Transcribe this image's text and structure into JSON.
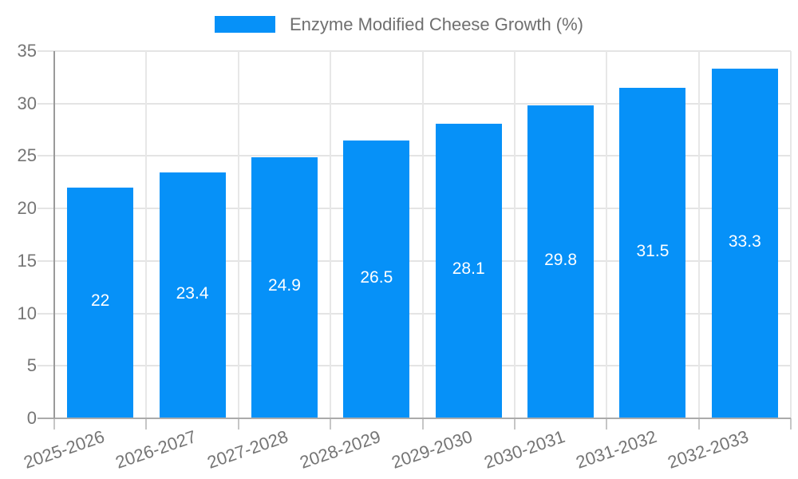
{
  "chart_data": {
    "type": "bar",
    "title": "",
    "categories": [
      "2025-2026",
      "2026-2027",
      "2027-2028",
      "2028-2029",
      "2029-2030",
      "2030-2031",
      "2031-2032",
      "2032-2033"
    ],
    "series": [
      {
        "name": "Enzyme Modified Cheese Growth (%)",
        "values": [
          22,
          23.4,
          24.9,
          26.5,
          28.1,
          29.8,
          31.5,
          33.3
        ]
      }
    ],
    "value_labels": [
      "22",
      "23.4",
      "24.9",
      "26.5",
      "28.1",
      "29.8",
      "31.5",
      "33.3"
    ],
    "y_ticks": [
      0,
      5,
      10,
      15,
      20,
      25,
      30,
      35
    ],
    "ylim": [
      0,
      35
    ],
    "xlabel": "",
    "ylabel": "",
    "grid": true,
    "legend_position": "top-center",
    "colors": {
      "bar": "#0691f8",
      "bar_label_text": "#ffffff",
      "axis_text": "#757575",
      "gridline": "#e4e4e4",
      "axis_line": "#9a9a9a"
    }
  }
}
